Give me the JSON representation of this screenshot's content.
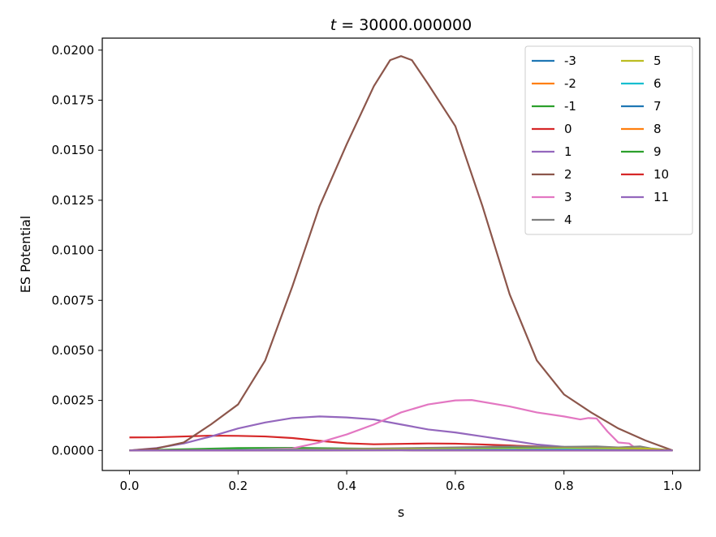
{
  "chart_data": {
    "type": "line",
    "title_italic": "t",
    "title_rest": " = 30000.000000",
    "xlabel": "s",
    "ylabel": "ES Potential",
    "xlim": [
      -0.05,
      1.05
    ],
    "ylim": [
      -0.001,
      0.0206
    ],
    "xticks": [
      0.0,
      0.2,
      0.4,
      0.6,
      0.8,
      1.0
    ],
    "xtick_labels": [
      "0.0",
      "0.2",
      "0.4",
      "0.6",
      "0.8",
      "1.0"
    ],
    "yticks": [
      0.0,
      0.0025,
      0.005,
      0.0075,
      0.01,
      0.0125,
      0.015,
      0.0175,
      0.02
    ],
    "ytick_labels": [
      "0.0000",
      "0.0025",
      "0.0050",
      "0.0075",
      "0.0100",
      "0.0125",
      "0.0150",
      "0.0175",
      "0.0200"
    ],
    "legend_position": "top-right",
    "legend_columns": 2,
    "series": [
      {
        "name": "-3",
        "color": "#1f77b4",
        "points": [
          [
            0,
            0
          ],
          [
            0.2,
            2e-05
          ],
          [
            0.4,
            3e-05
          ],
          [
            0.6,
            3e-05
          ],
          [
            0.8,
            2e-05
          ],
          [
            1.0,
            0
          ]
        ]
      },
      {
        "name": "-2",
        "color": "#ff7f0e",
        "points": [
          [
            0,
            0
          ],
          [
            0.2,
            3e-05
          ],
          [
            0.4,
            4e-05
          ],
          [
            0.6,
            4e-05
          ],
          [
            0.8,
            3e-05
          ],
          [
            1.0,
            0
          ]
        ]
      },
      {
        "name": "-1",
        "color": "#2ca02c",
        "points": [
          [
            0,
            0
          ],
          [
            0.1,
            6e-05
          ],
          [
            0.2,
            0.00012
          ],
          [
            0.3,
            0.00013
          ],
          [
            0.4,
            0.0001
          ],
          [
            0.5,
            8e-05
          ],
          [
            0.6,
            0.0001
          ],
          [
            0.7,
            0.00012
          ],
          [
            0.8,
            0.00012
          ],
          [
            0.9,
            0.0001
          ],
          [
            1.0,
            0
          ]
        ]
      },
      {
        "name": "0",
        "color": "#d62728",
        "points": [
          [
            0,
            0.00065
          ],
          [
            0.05,
            0.00066
          ],
          [
            0.1,
            0.0007
          ],
          [
            0.15,
            0.00074
          ],
          [
            0.2,
            0.00073
          ],
          [
            0.25,
            0.0007
          ],
          [
            0.3,
            0.00062
          ],
          [
            0.35,
            0.00048
          ],
          [
            0.4,
            0.00036
          ],
          [
            0.45,
            0.00031
          ],
          [
            0.5,
            0.00033
          ],
          [
            0.55,
            0.00035
          ],
          [
            0.6,
            0.00034
          ],
          [
            0.65,
            0.0003
          ],
          [
            0.7,
            0.00025
          ],
          [
            0.75,
            0.0002
          ],
          [
            0.8,
            0.00016
          ],
          [
            0.85,
            0.00014
          ],
          [
            0.9,
            0.00012
          ],
          [
            0.95,
            8e-05
          ],
          [
            1.0,
            0
          ]
        ]
      },
      {
        "name": "1",
        "color": "#9467bd",
        "points": [
          [
            0,
            0
          ],
          [
            0.05,
            0.00012
          ],
          [
            0.1,
            0.00035
          ],
          [
            0.15,
            0.0007
          ],
          [
            0.2,
            0.0011
          ],
          [
            0.25,
            0.0014
          ],
          [
            0.3,
            0.00162
          ],
          [
            0.35,
            0.0017
          ],
          [
            0.4,
            0.00165
          ],
          [
            0.45,
            0.00155
          ],
          [
            0.5,
            0.0013
          ],
          [
            0.55,
            0.00105
          ],
          [
            0.6,
            0.0009
          ],
          [
            0.65,
            0.0007
          ],
          [
            0.7,
            0.0005
          ],
          [
            0.75,
            0.0003
          ],
          [
            0.8,
            0.00018
          ],
          [
            0.85,
            0.00015
          ],
          [
            0.9,
            0.00012
          ],
          [
            0.95,
            8e-05
          ],
          [
            1.0,
            0
          ]
        ]
      },
      {
        "name": "2",
        "color": "#8c564b",
        "points": [
          [
            0,
            0
          ],
          [
            0.05,
            0.0001
          ],
          [
            0.1,
            0.0004
          ],
          [
            0.15,
            0.0013
          ],
          [
            0.2,
            0.0023
          ],
          [
            0.25,
            0.0045
          ],
          [
            0.3,
            0.0082
          ],
          [
            0.35,
            0.0122
          ],
          [
            0.4,
            0.0153
          ],
          [
            0.45,
            0.0182
          ],
          [
            0.48,
            0.0195
          ],
          [
            0.5,
            0.0197
          ],
          [
            0.52,
            0.0195
          ],
          [
            0.55,
            0.0183
          ],
          [
            0.6,
            0.0162
          ],
          [
            0.65,
            0.0122
          ],
          [
            0.7,
            0.0078
          ],
          [
            0.75,
            0.0045
          ],
          [
            0.8,
            0.0028
          ],
          [
            0.85,
            0.0019
          ],
          [
            0.9,
            0.0011
          ],
          [
            0.95,
            0.0005
          ],
          [
            1.0,
            0
          ]
        ]
      },
      {
        "name": "3",
        "color": "#e377c2",
        "points": [
          [
            0,
            0
          ],
          [
            0.1,
            0
          ],
          [
            0.2,
            2e-05
          ],
          [
            0.3,
            0.0001
          ],
          [
            0.35,
            0.0004
          ],
          [
            0.4,
            0.0008
          ],
          [
            0.45,
            0.0013
          ],
          [
            0.5,
            0.0019
          ],
          [
            0.55,
            0.0023
          ],
          [
            0.6,
            0.0025
          ],
          [
            0.63,
            0.00252
          ],
          [
            0.7,
            0.0022
          ],
          [
            0.75,
            0.0019
          ],
          [
            0.8,
            0.0017
          ],
          [
            0.83,
            0.00155
          ],
          [
            0.845,
            0.00162
          ],
          [
            0.86,
            0.0016
          ],
          [
            0.88,
            0.00095
          ],
          [
            0.9,
            0.0004
          ],
          [
            0.92,
            0.00035
          ],
          [
            0.93,
            0.00015
          ],
          [
            0.95,
            5e-05
          ],
          [
            1.0,
            0
          ]
        ]
      },
      {
        "name": "4",
        "color": "#7f7f7f",
        "points": [
          [
            0,
            0
          ],
          [
            0.2,
            3e-05
          ],
          [
            0.4,
            8e-05
          ],
          [
            0.6,
            0.00015
          ],
          [
            0.7,
            0.0002
          ],
          [
            0.8,
            0.00018
          ],
          [
            0.86,
            0.0002
          ],
          [
            0.9,
            0.00015
          ],
          [
            0.94,
            0.0002
          ],
          [
            0.96,
            0.0001
          ],
          [
            1.0,
            0
          ]
        ]
      },
      {
        "name": "5",
        "color": "#bcbd22",
        "points": [
          [
            0,
            0
          ],
          [
            0.2,
            2e-05
          ],
          [
            0.4,
            5e-05
          ],
          [
            0.6,
            8e-05
          ],
          [
            0.8,
            0.0001
          ],
          [
            0.95,
            0.0001
          ],
          [
            1.0,
            0
          ]
        ]
      },
      {
        "name": "6",
        "color": "#17becf",
        "points": [
          [
            0,
            0
          ],
          [
            0.2,
            2e-05
          ],
          [
            0.4,
            3e-05
          ],
          [
            0.6,
            4e-05
          ],
          [
            0.8,
            5e-05
          ],
          [
            1.0,
            0
          ]
        ]
      },
      {
        "name": "7",
        "color": "#1f77b4",
        "points": [
          [
            0,
            0
          ],
          [
            0.5,
            2e-05
          ],
          [
            1.0,
            0
          ]
        ]
      },
      {
        "name": "8",
        "color": "#ff7f0e",
        "points": [
          [
            0,
            0
          ],
          [
            0.5,
            2e-05
          ],
          [
            1.0,
            0
          ]
        ]
      },
      {
        "name": "9",
        "color": "#2ca02c",
        "points": [
          [
            0,
            0
          ],
          [
            0.5,
            1e-05
          ],
          [
            1.0,
            0
          ]
        ]
      },
      {
        "name": "10",
        "color": "#d62728",
        "points": [
          [
            0,
            0
          ],
          [
            0.5,
            1e-05
          ],
          [
            1.0,
            0
          ]
        ]
      },
      {
        "name": "11",
        "color": "#9467bd",
        "points": [
          [
            0,
            0
          ],
          [
            0.5,
            1e-05
          ],
          [
            1.0,
            0
          ]
        ]
      }
    ]
  }
}
